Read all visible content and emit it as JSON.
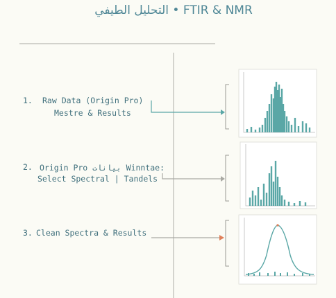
{
  "header": {
    "title": "التحليل الطيفي • FTIR & NMR"
  },
  "steps": [
    {
      "number": "1.",
      "lines": [
        "Raw Data (Origin Pro)",
        "Mestre & Results"
      ]
    },
    {
      "number": "2.",
      "lines": [
        "Origin Pro بيانات Winntae:",
        "Select Spectral | Tandels"
      ]
    },
    {
      "number": "3.",
      "lines": [
        "Clean Spectra & Results"
      ]
    }
  ]
}
